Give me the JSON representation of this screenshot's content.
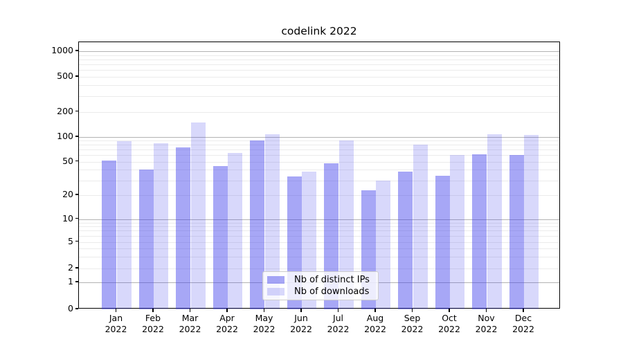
{
  "title": "codelink 2022",
  "legend": {
    "items": [
      {
        "label": "Nb of distinct IPs"
      },
      {
        "label": "Nb of downloads"
      }
    ]
  },
  "colors": {
    "bar_distinct_ips": "rgba(60,60,235,0.45)",
    "bar_downloads": "rgba(60,60,235,0.2)",
    "grid_major": "#b3b3b3",
    "grid_minor": "#ebebeb",
    "spine": "#000000"
  },
  "chart_data": {
    "type": "bar",
    "title": "codelink 2022",
    "categories": [
      "Jan 2022",
      "Feb 2022",
      "Mar 2022",
      "Apr 2022",
      "May 2022",
      "Jun 2022",
      "Jul 2022",
      "Aug 2022",
      "Sep 2022",
      "Oct 2022",
      "Nov 2022",
      "Dec 2022"
    ],
    "series": [
      {
        "name": "Nb of distinct IPs",
        "color": "rgba(60,60,235,0.45)",
        "values": [
          51,
          40,
          75,
          44,
          91,
          33,
          48,
          23,
          38,
          34,
          61,
          60
        ]
      },
      {
        "name": "Nb of downloads",
        "color": "rgba(60,60,235,0.2)",
        "values": [
          89,
          84,
          150,
          64,
          107,
          38,
          90,
          30,
          81,
          60,
          108,
          106
        ]
      }
    ],
    "xlabel": "",
    "ylabel": "",
    "yscale": "symlog",
    "yticks": [
      0,
      1,
      2,
      5,
      10,
      20,
      50,
      100,
      200,
      500,
      1000
    ],
    "ylim": [
      0,
      1290
    ],
    "grid": "both",
    "legend_position": "lower center"
  }
}
